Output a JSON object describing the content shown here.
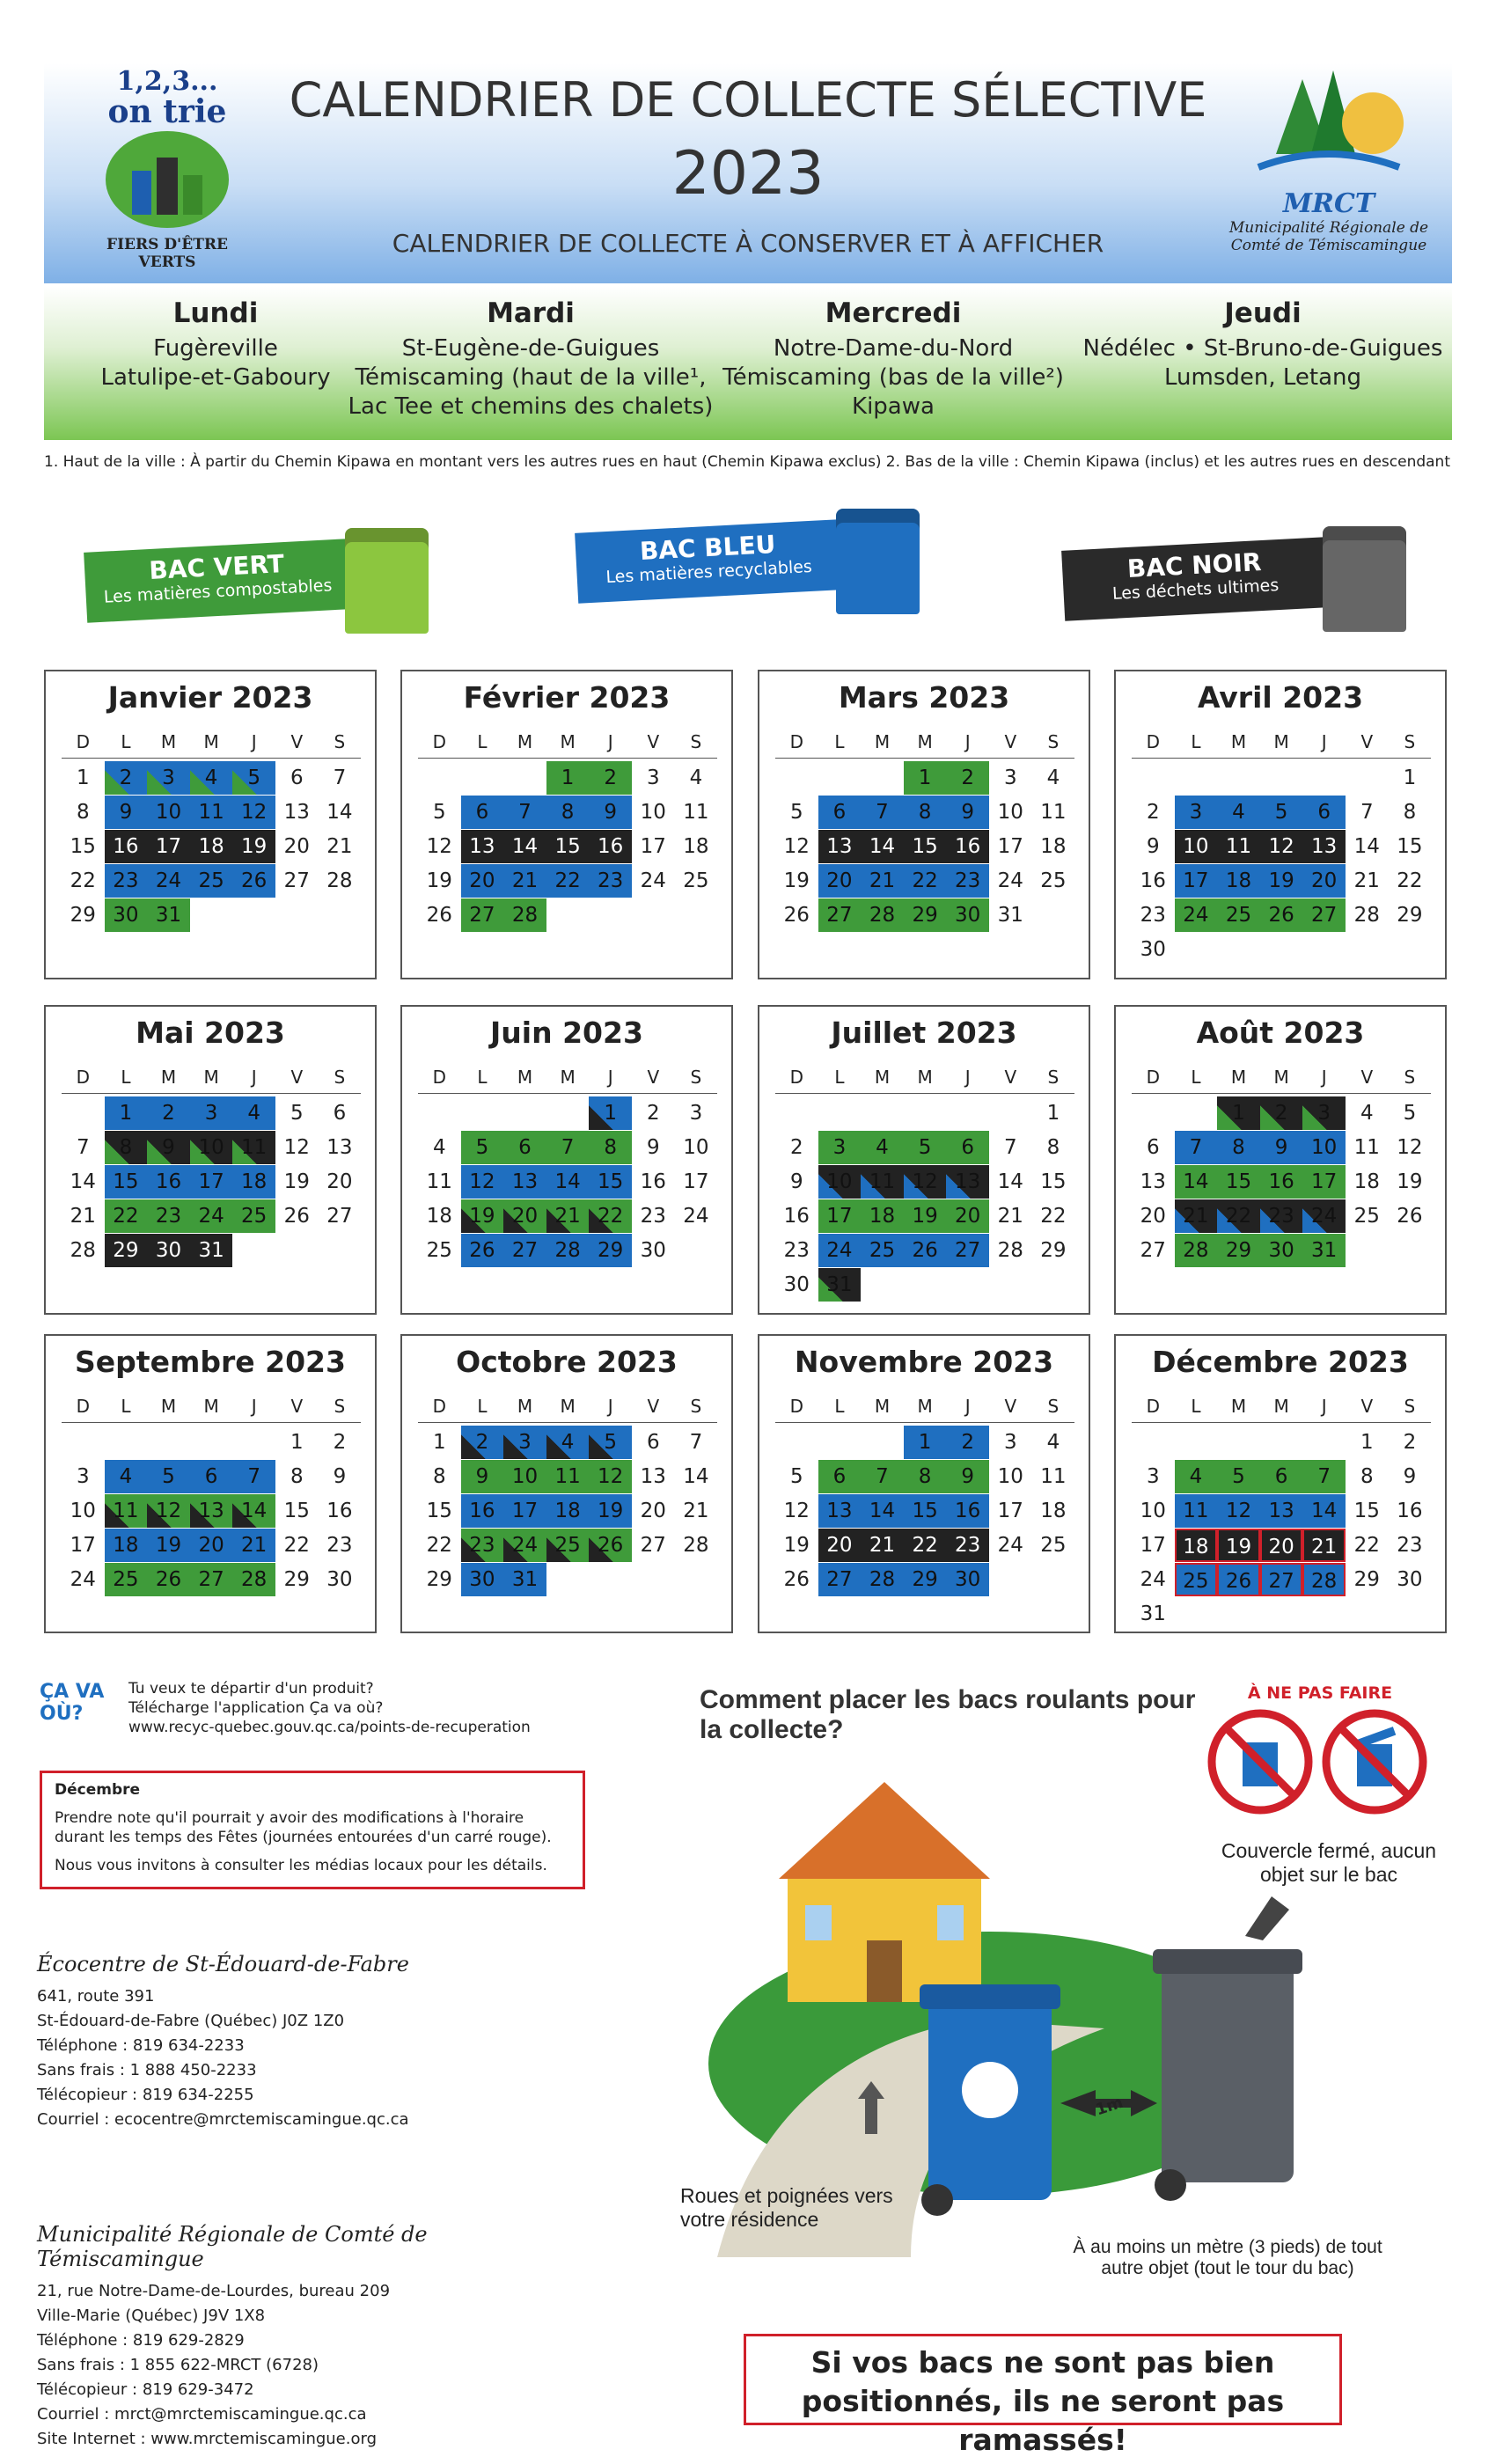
{
  "header": {
    "logo_left": {
      "line1": "1,2,3...",
      "line2": "on trie",
      "tagline": "FIERS D'ÊTRE VERTS"
    },
    "title": "CALENDRIER DE COLLECTE SÉLECTIVE",
    "year": "2023",
    "subtitle": "CALENDRIER DE COLLECTE À CONSERVER ET À AFFICHER",
    "logo_right": {
      "acronym": "MRCT",
      "name": "Municipalité Régionale de Comté de Témiscamingue"
    }
  },
  "schedule": [
    {
      "day": "Lundi",
      "places": [
        "Fugèreville",
        "Latulipe-et-Gaboury"
      ]
    },
    {
      "day": "Mardi",
      "places": [
        "St-Eugène-de-Guigues",
        "Témiscaming (haut de la ville¹, Lac Tee et chemins des chalets)"
      ]
    },
    {
      "day": "Mercredi",
      "places": [
        "Notre-Dame-du-Nord",
        "Témiscaming (bas de la ville²)",
        "Kipawa"
      ]
    },
    {
      "day": "Jeudi",
      "places": [
        "Nédélec • St-Bruno-de-Guigues",
        "Lumsden, Letang"
      ]
    }
  ],
  "notes": [
    "1. Haut de la ville : À partir du Chemin Kipawa en montant vers les autres rues en haut (Chemin Kipawa exclus)",
    "2. Bas de la ville : Chemin Kipawa (inclus) et les autres rues en descendant"
  ],
  "bins": [
    {
      "label": "BAC VERT",
      "sub": "Les matières compostables",
      "color": "#3f9b3a"
    },
    {
      "label": "BAC BLEU",
      "sub": "Les matières recyclables",
      "color": "#1f6fc0"
    },
    {
      "label": "BAC NOIR",
      "sub": "Les déchets ultimes",
      "color": "#2a2a2a"
    }
  ],
  "calendar": {
    "weekdays": [
      "D",
      "L",
      "M",
      "M",
      "J",
      "V",
      "S"
    ],
    "colors": {
      "green": "#3f9b3a",
      "blue": "#1f6fc0",
      "black": "#222222"
    },
    "months": [
      {
        "title": "Janvier 2023",
        "rows": [
          {
            "days": [
              "1",
              "2",
              "3",
              "4",
              "5",
              "6",
              "7"
            ],
            "bin": "blue-green"
          },
          {
            "days": [
              "8",
              "9",
              "10",
              "11",
              "12",
              "13",
              "14"
            ],
            "bin": "blue"
          },
          {
            "days": [
              "15",
              "16",
              "17",
              "18",
              "19",
              "20",
              "21"
            ],
            "bin": "black"
          },
          {
            "days": [
              "22",
              "23",
              "24",
              "25",
              "26",
              "27",
              "28"
            ],
            "bin": "blue"
          },
          {
            "days": [
              "29",
              "30",
              "31",
              null,
              null,
              null,
              null
            ],
            "bin": "green"
          }
        ]
      },
      {
        "title": "Février 2023",
        "rows": [
          {
            "days": [
              null,
              null,
              null,
              "1",
              "2",
              "3",
              "4"
            ],
            "bin": "green"
          },
          {
            "days": [
              "5",
              "6",
              "7",
              "8",
              "9",
              "10",
              "11"
            ],
            "bin": "blue"
          },
          {
            "days": [
              "12",
              "13",
              "14",
              "15",
              "16",
              "17",
              "18"
            ],
            "bin": "black"
          },
          {
            "days": [
              "19",
              "20",
              "21",
              "22",
              "23",
              "24",
              "25"
            ],
            "bin": "blue"
          },
          {
            "days": [
              "26",
              "27",
              "28",
              null,
              null,
              null,
              null
            ],
            "bin": "green"
          }
        ]
      },
      {
        "title": "Mars 2023",
        "rows": [
          {
            "days": [
              null,
              null,
              null,
              "1",
              "2",
              "3",
              "4"
            ],
            "bin": "green"
          },
          {
            "days": [
              "5",
              "6",
              "7",
              "8",
              "9",
              "10",
              "11"
            ],
            "bin": "blue"
          },
          {
            "days": [
              "12",
              "13",
              "14",
              "15",
              "16",
              "17",
              "18"
            ],
            "bin": "black"
          },
          {
            "days": [
              "19",
              "20",
              "21",
              "22",
              "23",
              "24",
              "25"
            ],
            "bin": "blue"
          },
          {
            "days": [
              "26",
              "27",
              "28",
              "29",
              "30",
              "31",
              null
            ],
            "bin": "green"
          }
        ]
      },
      {
        "title": "Avril 2023",
        "rows": [
          {
            "days": [
              null,
              null,
              null,
              null,
              null,
              null,
              "1"
            ],
            "bin": null
          },
          {
            "days": [
              "2",
              "3",
              "4",
              "5",
              "6",
              "7",
              "8"
            ],
            "bin": "blue"
          },
          {
            "days": [
              "9",
              "10",
              "11",
              "12",
              "13",
              "14",
              "15"
            ],
            "bin": "black"
          },
          {
            "days": [
              "16",
              "17",
              "18",
              "19",
              "20",
              "21",
              "22"
            ],
            "bin": "blue"
          },
          {
            "days": [
              "23",
              "24",
              "25",
              "26",
              "27",
              "28",
              "29"
            ],
            "bin": "green"
          },
          {
            "days": [
              "30",
              null,
              null,
              null,
              null,
              null,
              null
            ],
            "bin": null
          }
        ]
      },
      {
        "title": "Mai 2023",
        "rows": [
          {
            "days": [
              null,
              "1",
              "2",
              "3",
              "4",
              "5",
              "6"
            ],
            "bin": "blue"
          },
          {
            "days": [
              "7",
              "8",
              "9",
              "10",
              "11",
              "12",
              "13"
            ],
            "bin": "black-green"
          },
          {
            "days": [
              "14",
              "15",
              "16",
              "17",
              "18",
              "19",
              "20"
            ],
            "bin": "blue"
          },
          {
            "days": [
              "21",
              "22",
              "23",
              "24",
              "25",
              "26",
              "27"
            ],
            "bin": "green"
          },
          {
            "days": [
              "28",
              "29",
              "30",
              "31",
              null,
              null,
              null
            ],
            "bin": "black"
          }
        ]
      },
      {
        "title": "Juin 2023",
        "rows": [
          {
            "days": [
              null,
              null,
              null,
              null,
              "1",
              "2",
              "3"
            ],
            "bin": "blue-black"
          },
          {
            "days": [
              "4",
              "5",
              "6",
              "7",
              "8",
              "9",
              "10"
            ],
            "bin": "green"
          },
          {
            "days": [
              "11",
              "12",
              "13",
              "14",
              "15",
              "16",
              "17"
            ],
            "bin": "blue"
          },
          {
            "days": [
              "18",
              "19",
              "20",
              "21",
              "22",
              "23",
              "24"
            ],
            "bin": "green-black"
          },
          {
            "days": [
              "25",
              "26",
              "27",
              "28",
              "29",
              "30",
              null
            ],
            "bin": "blue"
          }
        ]
      },
      {
        "title": "Juillet 2023",
        "rows": [
          {
            "days": [
              null,
              null,
              null,
              null,
              null,
              null,
              "1"
            ],
            "bin": null
          },
          {
            "days": [
              "2",
              "3",
              "4",
              "5",
              "6",
              "7",
              "8"
            ],
            "bin": "green"
          },
          {
            "days": [
              "9",
              "10",
              "11",
              "12",
              "13",
              "14",
              "15"
            ],
            "bin": "black-blue"
          },
          {
            "days": [
              "16",
              "17",
              "18",
              "19",
              "20",
              "21",
              "22"
            ],
            "bin": "green"
          },
          {
            "days": [
              "23",
              "24",
              "25",
              "26",
              "27",
              "28",
              "29"
            ],
            "bin": "blue"
          },
          {
            "days": [
              "30",
              "31",
              null,
              null,
              null,
              null,
              null
            ],
            "bin": "black-green"
          }
        ]
      },
      {
        "title": "Août 2023",
        "rows": [
          {
            "days": [
              null,
              null,
              "1",
              "2",
              "3",
              "4",
              "5"
            ],
            "bin": "black-green"
          },
          {
            "days": [
              "6",
              "7",
              "8",
              "9",
              "10",
              "11",
              "12"
            ],
            "bin": "blue"
          },
          {
            "days": [
              "13",
              "14",
              "15",
              "16",
              "17",
              "18",
              "19"
            ],
            "bin": "green"
          },
          {
            "days": [
              "20",
              "21",
              "22",
              "23",
              "24",
              "25",
              "26"
            ],
            "bin": "black-blue"
          },
          {
            "days": [
              "27",
              "28",
              "29",
              "30",
              "31",
              null,
              null
            ],
            "bin": "green"
          }
        ]
      },
      {
        "title": "Septembre 2023",
        "rows": [
          {
            "days": [
              null,
              null,
              null,
              null,
              null,
              "1",
              "2"
            ],
            "bin": null
          },
          {
            "days": [
              "3",
              "4",
              "5",
              "6",
              "7",
              "8",
              "9"
            ],
            "bin": "blue"
          },
          {
            "days": [
              "10",
              "11",
              "12",
              "13",
              "14",
              "15",
              "16"
            ],
            "bin": "green-black"
          },
          {
            "days": [
              "17",
              "18",
              "19",
              "20",
              "21",
              "22",
              "23"
            ],
            "bin": "blue"
          },
          {
            "days": [
              "24",
              "25",
              "26",
              "27",
              "28",
              "29",
              "30"
            ],
            "bin": "green"
          }
        ]
      },
      {
        "title": "Octobre 2023",
        "rows": [
          {
            "days": [
              "1",
              "2",
              "3",
              "4",
              "5",
              "6",
              "7"
            ],
            "bin": "blue-black"
          },
          {
            "days": [
              "8",
              "9",
              "10",
              "11",
              "12",
              "13",
              "14"
            ],
            "bin": "green"
          },
          {
            "days": [
              "15",
              "16",
              "17",
              "18",
              "19",
              "20",
              "21"
            ],
            "bin": "blue"
          },
          {
            "days": [
              "22",
              "23",
              "24",
              "25",
              "26",
              "27",
              "28"
            ],
            "bin": "green-black"
          },
          {
            "days": [
              "29",
              "30",
              "31",
              null,
              null,
              null,
              null
            ],
            "bin": "blue"
          }
        ]
      },
      {
        "title": "Novembre 2023",
        "rows": [
          {
            "days": [
              null,
              null,
              null,
              "1",
              "2",
              "3",
              "4"
            ],
            "bin": "blue"
          },
          {
            "days": [
              "5",
              "6",
              "7",
              "8",
              "9",
              "10",
              "11"
            ],
            "bin": "green"
          },
          {
            "days": [
              "12",
              "13",
              "14",
              "15",
              "16",
              "17",
              "18"
            ],
            "bin": "blue"
          },
          {
            "days": [
              "19",
              "20",
              "21",
              "22",
              "23",
              "24",
              "25"
            ],
            "bin": "black"
          },
          {
            "days": [
              "26",
              "27",
              "28",
              "29",
              "30",
              null,
              null
            ],
            "bin": "blue"
          }
        ]
      },
      {
        "title": "Décembre 2023",
        "rows": [
          {
            "days": [
              null,
              null,
              null,
              null,
              null,
              "1",
              "2"
            ],
            "bin": null
          },
          {
            "days": [
              "3",
              "4",
              "5",
              "6",
              "7",
              "8",
              "9"
            ],
            "bin": "green"
          },
          {
            "days": [
              "10",
              "11",
              "12",
              "13",
              "14",
              "15",
              "16"
            ],
            "bin": "blue"
          },
          {
            "days": [
              "17",
              "18",
              "19",
              "20",
              "21",
              "22",
              "23"
            ],
            "bin": "black",
            "holiday": true
          },
          {
            "days": [
              "24",
              "25",
              "26",
              "27",
              "28",
              "29",
              "30"
            ],
            "bin": "blue",
            "holiday": true
          },
          {
            "days": [
              "31",
              null,
              null,
              null,
              null,
              null,
              null
            ],
            "bin": null
          }
        ]
      }
    ]
  },
  "app": {
    "logo": "ÇA VA OÙ?",
    "lines": [
      "Tu veux te départir d'un produit?",
      "Télécharge l'application Ça va où?",
      "www.recyc-quebec.gouv.qc.ca/points-de-recuperation"
    ]
  },
  "notice": {
    "title": "Décembre",
    "lines": [
      "Prendre note qu'il pourrait y avoir des modifications à l'horaire durant les temps des Fêtes (journées entourées d'un carré rouge).",
      "Nous vous invitons à consulter les médias locaux pour les détails."
    ]
  },
  "contacts": [
    {
      "name": "Écocentre de St-Édouard-de-Fabre",
      "lines": [
        "641, route 391",
        "St-Édouard-de-Fabre (Québec) J0Z 1Z0",
        "Téléphone : 819 634-2233",
        "Sans frais : 1 888 450-2233",
        "Télécopieur : 819 634-2255",
        "Courriel : ecocentre@mrctemiscamingue.qc.ca"
      ]
    },
    {
      "name": "Municipalité Régionale de Comté de Témiscamingue",
      "lines": [
        "21, rue Notre-Dame-de-Lourdes, bureau 209",
        "Ville-Marie (Québec) J9V 1X8",
        "Téléphone : 819 629-2829",
        "Sans frais : 1 855 622-MRCT (6728)",
        "Télécopieur : 819 629-3472",
        "Courriel : mrct@mrctemiscamingue.qc.ca",
        "Site Internet : www.mrctemiscamingue.org"
      ]
    }
  ],
  "placement": {
    "heading": "Comment placer les bacs roulants pour la collecte?",
    "dont": "À NE PAS FAIRE",
    "lid": "Couvercle fermé, aucun objet sur le bac",
    "wheels": "Roues et poignées vers votre résidence",
    "distance_tag": "1m",
    "distance": "À au moins un mètre (3 pieds) de tout autre objet (tout le tour du bac)",
    "warning": "Si vos bacs ne sont pas bien positionnés, ils ne seront pas ramassés!"
  }
}
